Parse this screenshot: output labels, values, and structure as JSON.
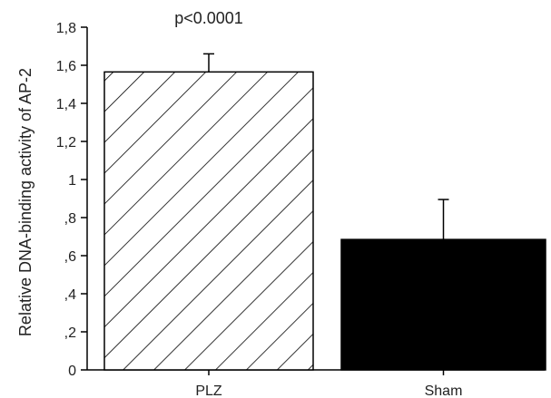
{
  "chart_data": {
    "type": "bar",
    "categories": [
      "PLZ",
      "Sham"
    ],
    "values": [
      1.565,
      0.685
    ],
    "error_bars": [
      0.095,
      0.21
    ],
    "ylabel": "Relative DNA-binding activity of AP-2",
    "xlabel": "",
    "ylim": [
      0,
      1.8
    ],
    "yticks": [
      0,
      0.2,
      0.4,
      0.6,
      0.8,
      1.0,
      1.2,
      1.4,
      1.6,
      1.8
    ],
    "ytick_labels": [
      "0",
      ",2",
      ",4",
      ",6",
      ",8",
      "1",
      "1,2",
      "1,4",
      "1,6",
      "1,8"
    ],
    "annotation": "p<0.0001",
    "bar_styles": [
      "hatched",
      "solid"
    ],
    "colors": {
      "bar_fill_solid": "#000000",
      "bar_stroke": "#000000",
      "hatch": "#000000",
      "axis": "#000000"
    },
    "grid": false
  }
}
